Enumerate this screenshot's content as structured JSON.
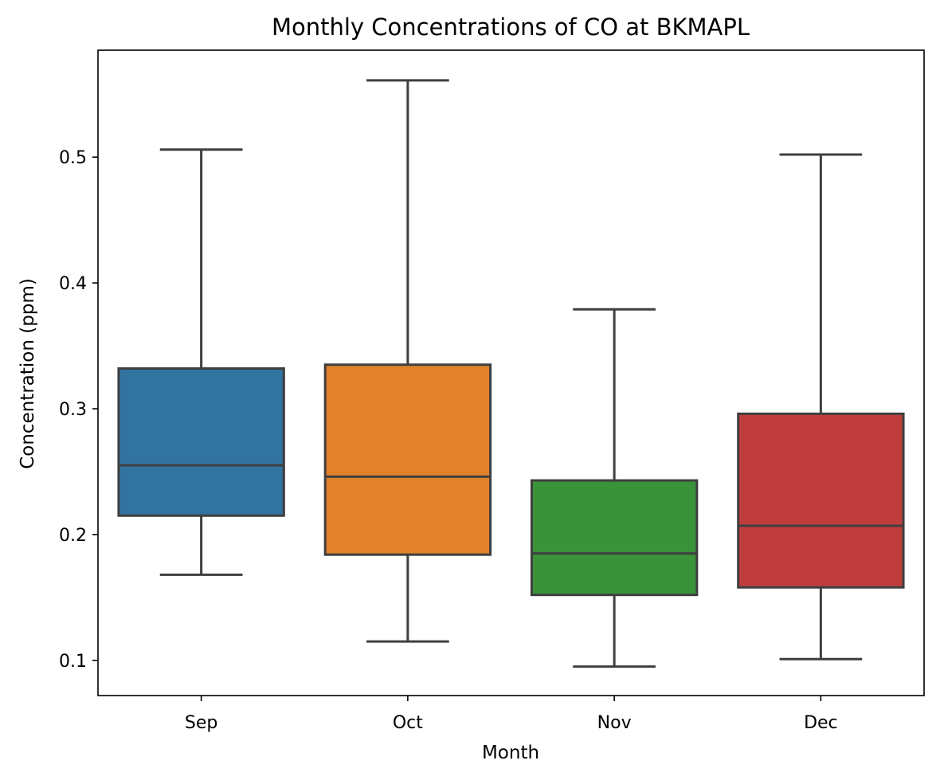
{
  "chart_data": {
    "type": "box",
    "title": "Monthly Concentrations of CO at BKMAPL",
    "xlabel": "Month",
    "ylabel": "Concentration (ppm)",
    "categories": [
      "Sep",
      "Oct",
      "Nov",
      "Dec"
    ],
    "colors": [
      "#3274A1",
      "#E1812C",
      "#3A923A",
      "#C03D3E"
    ],
    "edge_color": "#3F3F3F",
    "ylim": [
      0.072,
      0.585
    ],
    "yticks": [
      0.1,
      0.2,
      0.3,
      0.4,
      0.5
    ],
    "ytick_labels": [
      "0.1",
      "0.2",
      "0.3",
      "0.4",
      "0.5"
    ],
    "boxes": [
      {
        "category": "Sep",
        "whislo": 0.168,
        "q1": 0.215,
        "med": 0.255,
        "q3": 0.332,
        "whishi": 0.506
      },
      {
        "category": "Oct",
        "whislo": 0.115,
        "q1": 0.184,
        "med": 0.246,
        "q3": 0.335,
        "whishi": 0.561
      },
      {
        "category": "Nov",
        "whislo": 0.095,
        "q1": 0.152,
        "med": 0.185,
        "q3": 0.243,
        "whishi": 0.379
      },
      {
        "category": "Dec",
        "whislo": 0.101,
        "q1": 0.158,
        "med": 0.207,
        "q3": 0.296,
        "whishi": 0.502
      }
    ],
    "grid": false,
    "legend": "none"
  }
}
